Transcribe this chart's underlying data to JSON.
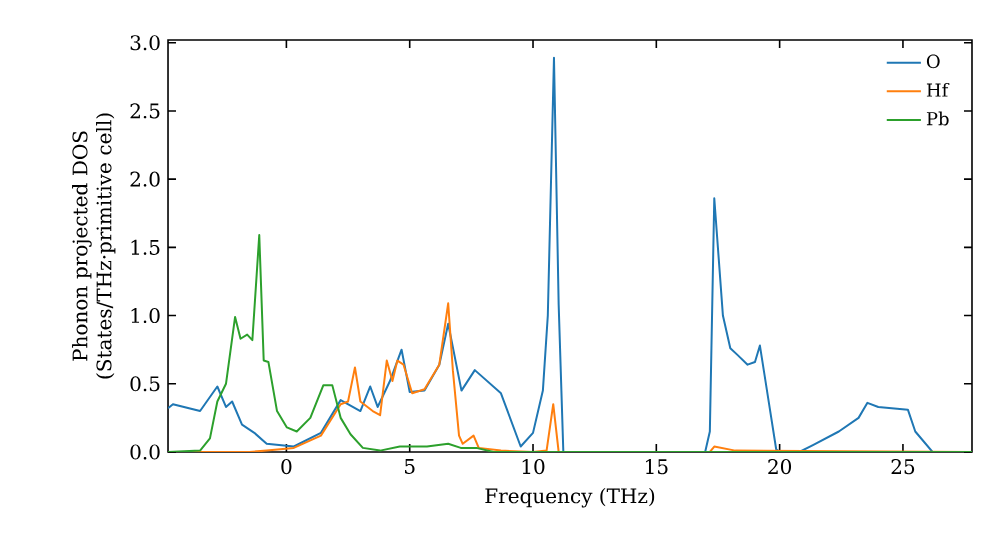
{
  "chart_data": {
    "type": "line",
    "xlabel": "Frequency (THz)",
    "ylabel": "Phonon projected DOS (States/THz·primitive cell)",
    "xlim": [
      -4.8,
      27.8
    ],
    "ylim": [
      0,
      3.02
    ],
    "xticks": [
      0,
      5,
      10,
      15,
      20,
      25
    ],
    "yticks": [
      {
        "value": 0,
        "label": "0.0"
      },
      {
        "value": 0.5,
        "label": "0.5"
      },
      {
        "value": 1,
        "label": "1.0"
      },
      {
        "value": 1.5,
        "label": "1.5"
      },
      {
        "value": 2,
        "label": "2.0"
      },
      {
        "value": 2.5,
        "label": "2.5"
      },
      {
        "value": 3,
        "label": "3.0"
      }
    ],
    "grid": false,
    "legend": "top right",
    "marker": "none",
    "line_style": "solid",
    "series": [
      {
        "name": "O",
        "color": "#1f77b4",
        "x": [
          -4.8,
          -4.6,
          -3.5,
          -2.8,
          -2.45,
          -2.2,
          -1.8,
          -1.3,
          -0.8,
          0.3,
          1.4,
          2.2,
          3.0,
          3.4,
          3.7,
          4.2,
          4.67,
          5.0,
          5.6,
          6.2,
          6.56,
          7.1,
          7.64,
          8.7,
          9.5,
          10.0,
          10.4,
          10.6,
          10.85,
          11.04,
          11.23,
          16.98,
          17.17,
          17.35,
          17.7,
          18.0,
          18.3,
          18.7,
          19.0,
          19.2,
          19.6,
          19.86,
          20.0,
          20.8,
          21.35,
          22.4,
          23.2,
          23.56,
          24.0,
          25.2,
          25.5,
          26.2,
          27.8
        ],
        "values": [
          0.32,
          0.35,
          0.3,
          0.48,
          0.33,
          0.37,
          0.2,
          0.14,
          0.06,
          0.04,
          0.14,
          0.38,
          0.3,
          0.48,
          0.33,
          0.52,
          0.75,
          0.44,
          0.45,
          0.64,
          0.94,
          0.45,
          0.6,
          0.43,
          0.04,
          0.14,
          0.45,
          1.0,
          2.89,
          1.08,
          0,
          0,
          0.15,
          1.86,
          1.0,
          0.76,
          0.71,
          0.64,
          0.66,
          0.78,
          0.32,
          0.02,
          0,
          0,
          0.05,
          0.15,
          0.25,
          0.36,
          0.33,
          0.31,
          0.15,
          0,
          0
        ]
      },
      {
        "name": "Hf",
        "color": "#ff7f0e",
        "x": [
          -4.8,
          -1.5,
          -0.8,
          0.3,
          1.4,
          2.2,
          2.5,
          2.78,
          3.0,
          3.5,
          3.8,
          4.07,
          4.3,
          4.5,
          4.75,
          5.1,
          5.6,
          6.2,
          6.56,
          6.75,
          7.0,
          7.15,
          7.59,
          7.8,
          8.7,
          10.0,
          10.55,
          10.82,
          11.04,
          17.17,
          17.35,
          18.2,
          27.8
        ],
        "values": [
          0,
          0,
          0.01,
          0.03,
          0.12,
          0.35,
          0.37,
          0.62,
          0.37,
          0.3,
          0.27,
          0.67,
          0.52,
          0.67,
          0.64,
          0.43,
          0.46,
          0.64,
          1.09,
          0.6,
          0.12,
          0.06,
          0.12,
          0.03,
          0.01,
          0,
          0.01,
          0.35,
          0,
          0,
          0.04,
          0.01,
          0
        ]
      },
      {
        "name": "Pb",
        "color": "#2ca02c",
        "x": [
          -4.8,
          -3.5,
          -3.1,
          -2.8,
          -2.45,
          -2.08,
          -1.86,
          -1.59,
          -1.38,
          -1.1,
          -0.92,
          -0.73,
          -0.38,
          0.02,
          0.42,
          0.97,
          1.5,
          1.86,
          2.2,
          2.6,
          3.1,
          3.8,
          4.6,
          5.7,
          6.56,
          7.07,
          7.7,
          8.4,
          27.8
        ],
        "values": [
          0,
          0.01,
          0.1,
          0.37,
          0.5,
          0.99,
          0.83,
          0.86,
          0.82,
          1.59,
          0.67,
          0.66,
          0.3,
          0.18,
          0.15,
          0.25,
          0.49,
          0.49,
          0.25,
          0.13,
          0.03,
          0.01,
          0.04,
          0.04,
          0.06,
          0.03,
          0.03,
          0,
          0
        ]
      }
    ]
  }
}
